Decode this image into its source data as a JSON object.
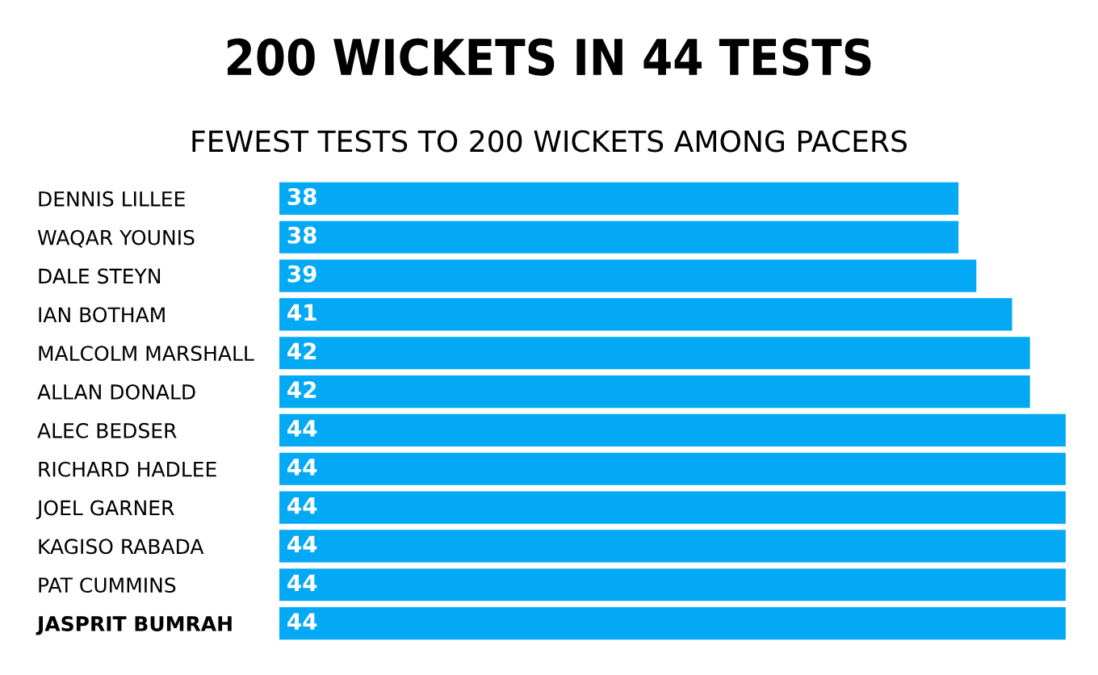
{
  "chart_data": {
    "type": "bar",
    "orientation": "horizontal",
    "title": "200 WICKETS IN 44 TESTS",
    "subtitle": "FEWEST TESTS TO 200 WICKETS AMONG PACERS",
    "categories": [
      "DENNIS LILLEE",
      "WAQAR YOUNIS",
      "DALE STEYN",
      "IAN BOTHAM",
      "MALCOLM MARSHALL",
      "ALLAN DONALD",
      "ALEC BEDSER",
      "RICHARD HADLEE",
      "JOEL GARNER",
      "KAGISO RABADA",
      "PAT CUMMINS",
      "JASPRIT BUMRAH"
    ],
    "values": [
      38,
      38,
      39,
      41,
      42,
      42,
      44,
      44,
      44,
      44,
      44,
      44
    ],
    "color": "#03a9f4",
    "data_labels": true,
    "grid": false,
    "legend": false
  }
}
